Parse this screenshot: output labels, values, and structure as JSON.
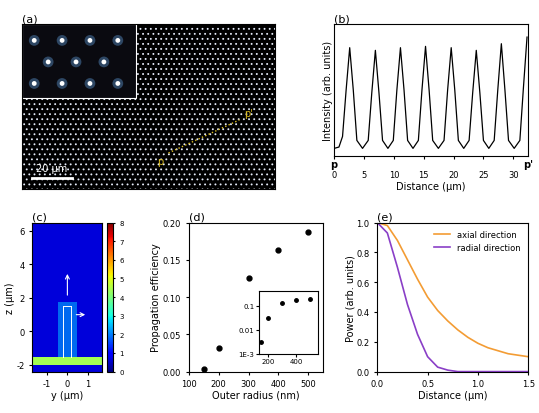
{
  "chart_data": [
    {
      "type": "image",
      "title": "(a)",
      "tick_labels": false,
      "annotations": {
        "scale_bar": "20 μm",
        "start": "p",
        "end": "p'"
      }
    },
    {
      "type": "line",
      "title": "(b)",
      "xlabel": "Distance (μm)",
      "ylabel": "Intensity (arb. units)",
      "tick_labels": "x",
      "annotations": {
        "start": "p",
        "end": "p'"
      },
      "xlim": [
        0,
        32.5
      ],
      "xticks": [
        0,
        5,
        10,
        15,
        20,
        25,
        30
      ],
      "ylim": [
        0,
        1
      ],
      "series": [
        {
          "name": "intensity",
          "color": "#000000",
          "x": [
            0,
            0.8,
            1.4,
            2.0,
            2.6,
            3.2,
            3.8,
            4.75,
            5.7,
            6.3,
            6.9,
            7.5,
            8.1,
            9.0,
            9.9,
            10.5,
            11.1,
            11.7,
            12.3,
            13.2,
            14.1,
            14.7,
            15.3,
            15.9,
            16.5,
            17.45,
            18.4,
            19.0,
            19.6,
            20.2,
            20.8,
            21.7,
            22.6,
            23.2,
            23.8,
            24.4,
            25.0,
            25.9,
            26.8,
            27.4,
            28.0,
            28.6,
            29.2,
            30.15,
            31.1,
            31.7,
            32.3
          ],
          "values": [
            0.06,
            0.07,
            0.15,
            0.5,
            0.82,
            0.5,
            0.12,
            0.06,
            0.12,
            0.48,
            0.8,
            0.48,
            0.12,
            0.06,
            0.12,
            0.5,
            0.82,
            0.5,
            0.12,
            0.06,
            0.12,
            0.5,
            0.83,
            0.5,
            0.12,
            0.06,
            0.12,
            0.5,
            0.82,
            0.5,
            0.12,
            0.06,
            0.12,
            0.48,
            0.8,
            0.48,
            0.12,
            0.06,
            0.12,
            0.5,
            0.85,
            0.5,
            0.12,
            0.06,
            0.12,
            0.52,
            0.9
          ]
        }
      ]
    },
    {
      "type": "field_map",
      "title": "(c)",
      "xlabel": "y (μm)",
      "ylabel": "z (μm)",
      "xlim": [
        -1.7,
        1.7
      ],
      "xticks": [
        -1,
        0,
        1
      ],
      "ylim": [
        -2.4,
        6.5
      ],
      "yticks": [
        -2,
        0,
        2,
        4,
        6
      ],
      "colorbar": {
        "lim": [
          0,
          8
        ],
        "ticks": [
          0,
          1,
          2,
          3,
          4,
          5,
          6,
          7,
          8
        ]
      }
    },
    {
      "type": "scatter",
      "title": "(d)",
      "xlabel": "Outer radius (nm)",
      "ylabel": "Propagation efficiency",
      "x": [
        150,
        200,
        300,
        400,
        500
      ],
      "values": [
        0.003,
        0.032,
        0.125,
        0.163,
        0.188
      ],
      "color": "#000000",
      "marker": "circle",
      "xlim": [
        100,
        550
      ],
      "xticks": [
        100,
        200,
        300,
        400,
        500
      ],
      "ylim": [
        0,
        0.2
      ],
      "yticks": [
        {
          "value": 0.0,
          "label": "0.00"
        },
        {
          "value": 0.05,
          "label": "0.05"
        },
        {
          "value": 0.1,
          "label": "0.10"
        },
        {
          "value": 0.15,
          "label": "0.15"
        },
        {
          "value": 0.2,
          "label": "0.20"
        }
      ],
      "inset": {
        "type": "scatter",
        "log": "y",
        "xlim": [
          130,
          560
        ],
        "xticks": [
          200,
          400
        ],
        "ylim": [
          0.001,
          0.4
        ],
        "yticks": [
          {
            "value": 0.001,
            "label": "1E-3"
          },
          0.01,
          0.1
        ]
      }
    },
    {
      "type": "line",
      "title": "(e)",
      "xlabel": "Distance (μm)",
      "ylabel": "Power (arb. units)",
      "xlim": [
        0,
        1.5
      ],
      "xticks": [
        0.0,
        0.5,
        1.0,
        1.5
      ],
      "ylim": [
        0,
        1
      ],
      "yticks": [
        0.0,
        0.2,
        0.4,
        0.6,
        0.8,
        1.0
      ],
      "legend": "upper right",
      "x": [
        0.0,
        0.1,
        0.2,
        0.3,
        0.4,
        0.5,
        0.6,
        0.7,
        0.8,
        0.9,
        1.0,
        1.1,
        1.2,
        1.3,
        1.4,
        1.5
      ],
      "series": [
        {
          "name": "axial direction",
          "color": "#f39c34",
          "values": [
            1.0,
            0.98,
            0.88,
            0.75,
            0.62,
            0.5,
            0.41,
            0.34,
            0.28,
            0.23,
            0.19,
            0.16,
            0.14,
            0.12,
            0.11,
            0.1
          ]
        },
        {
          "name": "radial direction",
          "color": "#8a3fc7",
          "values": [
            1.0,
            0.93,
            0.7,
            0.45,
            0.25,
            0.1,
            0.03,
            0.01,
            0.0,
            0.0,
            0.0,
            0.0,
            0.0,
            0.0,
            0.0,
            0.0
          ]
        }
      ]
    }
  ]
}
